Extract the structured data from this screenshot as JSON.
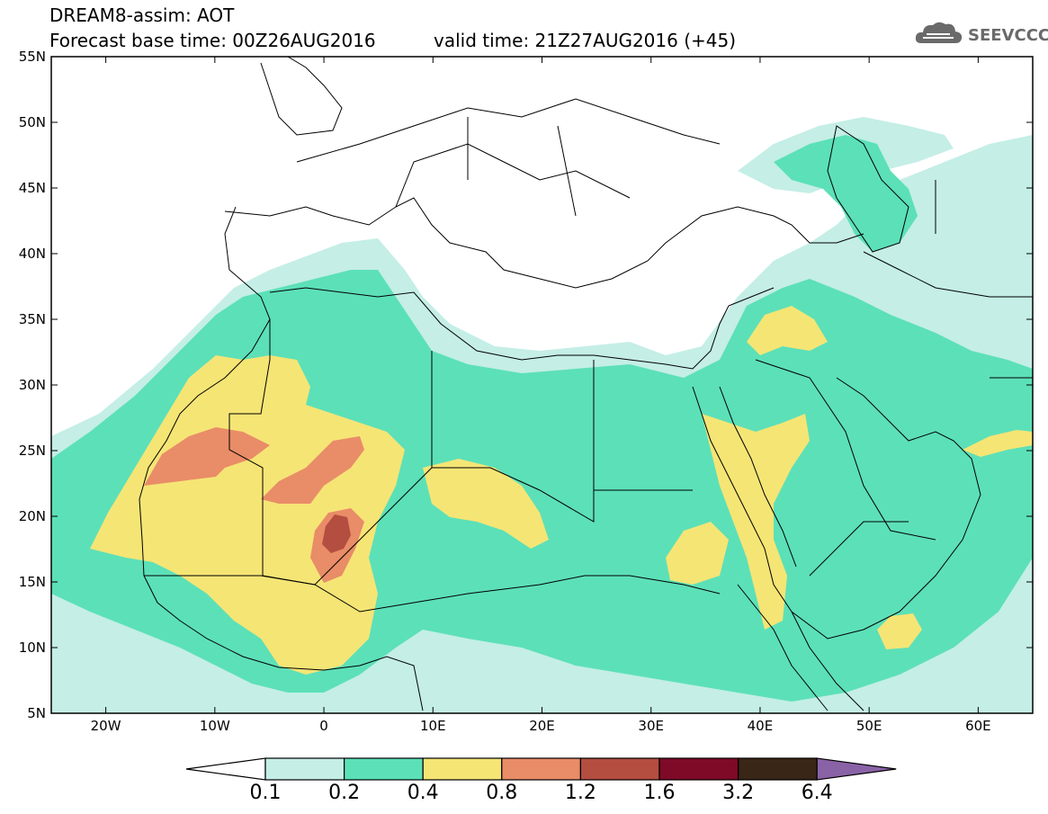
{
  "header": {
    "title_line1": "DREAM8-assim: AOT",
    "title_line2": "Forecast base time: 00Z26AUG2016",
    "valid_time": "valid time: 21Z27AUG2016 (+45)"
  },
  "logo": {
    "text": "SEEVCCC",
    "icon": "cloud-icon"
  },
  "map": {
    "lon_range": [
      -25,
      65
    ],
    "lat_range": [
      5,
      55
    ],
    "lat_ticks": [
      "55N",
      "50N",
      "45N",
      "40N",
      "35N",
      "30N",
      "25N",
      "20N",
      "15N",
      "10N",
      "5N"
    ],
    "lon_ticks": [
      "20W",
      "10W",
      "0",
      "10E",
      "20E",
      "30E",
      "40E",
      "50E",
      "60E"
    ]
  },
  "colorbar": {
    "labels": [
      "0.1",
      "0.2",
      "0.4",
      "0.8",
      "1.2",
      "1.6",
      "3.2",
      "6.4"
    ],
    "colors": [
      "#ffffff",
      "#c4eee6",
      "#5ce0b8",
      "#f5e575",
      "#e98c68",
      "#b34e40",
      "#7e0a28",
      "#3a2616",
      "#8a62a6"
    ]
  },
  "legend": {
    "levels": [
      0.1,
      0.2,
      0.4,
      0.8,
      1.2,
      1.6,
      3.2,
      6.4
    ],
    "colors": {
      "l1": "#c4eee6",
      "l2": "#5ce0b8",
      "l3": "#f5e575",
      "l4": "#e98c68",
      "l5": "#b34e40"
    }
  }
}
